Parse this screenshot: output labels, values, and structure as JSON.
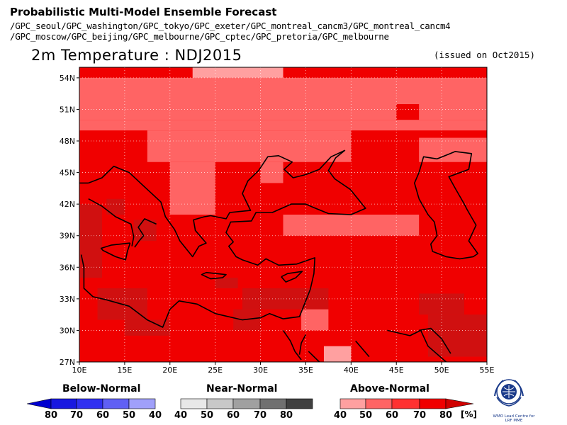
{
  "header": {
    "title": "Probabilistic Multi-Model Ensemble Forecast",
    "models_line1": "/GPC_seoul/GPC_washington/GPC_tokyo/GPC_exeter/GPC_montreal_cancm3/GPC_montreal_cancm4",
    "models_line2": "/GPC_moscow/GPC_beijing/GPC_melbourne/GPC_cptec/GPC_pretoria/GPC_melbourne"
  },
  "map": {
    "title": "2m Temperature : NDJ2015",
    "issued": "(issued on Oct2015)",
    "lon_range": [
      10,
      55
    ],
    "lat_range": [
      27,
      55
    ],
    "grid_step_deg": 2.5,
    "lat_ticks": [
      "54N",
      "51N",
      "48N",
      "45N",
      "42N",
      "39N",
      "36N",
      "33N",
      "30N",
      "27N"
    ],
    "lon_ticks": [
      "10E",
      "15E",
      "20E",
      "25E",
      "30E",
      "35E",
      "40E",
      "45E",
      "50E",
      "55E"
    ],
    "base_class": "above_60",
    "regions": [
      {
        "cls": "above_40",
        "lon": [
          22.5,
          32.5
        ],
        "lat": [
          54.0,
          55.0
        ]
      },
      {
        "cls": "above_50",
        "lon": [
          10,
          55
        ],
        "lat": [
          50,
          54
        ]
      },
      {
        "cls": "above_60",
        "lon": [
          45,
          47.5
        ],
        "lat": [
          50,
          51.5
        ]
      },
      {
        "cls": "above_50",
        "lon": [
          10,
          55
        ],
        "lat": [
          49,
          50
        ]
      },
      {
        "cls": "above_50",
        "lon": [
          17.5,
          40
        ],
        "lat": [
          46,
          49
        ]
      },
      {
        "cls": "above_50",
        "lon": [
          47.5,
          55
        ],
        "lat": [
          46,
          48.3
        ]
      },
      {
        "cls": "above_50",
        "lon": [
          20,
          25
        ],
        "lat": [
          41,
          46
        ]
      },
      {
        "cls": "above_50",
        "lon": [
          30,
          32.5
        ],
        "lat": [
          44,
          46
        ]
      },
      {
        "cls": "above_50",
        "lon": [
          32.5,
          47.5
        ],
        "lat": [
          39,
          41
        ]
      },
      {
        "cls": "above_70",
        "lon": [
          10,
          12.5
        ],
        "lat": [
          35,
          42
        ]
      },
      {
        "cls": "above_70",
        "lon": [
          13,
          15
        ],
        "lat": [
          41,
          42.5
        ]
      },
      {
        "cls": "above_70",
        "lon": [
          16,
          18.5
        ],
        "lat": [
          38.5,
          40.5
        ]
      },
      {
        "cls": "above_70",
        "lon": [
          12,
          17.5
        ],
        "lat": [
          31,
          34
        ]
      },
      {
        "cls": "above_70",
        "lon": [
          25,
          27.5
        ],
        "lat": [
          34,
          35
        ]
      },
      {
        "cls": "above_70",
        "lon": [
          28,
          37.5
        ],
        "lat": [
          32,
          34
        ]
      },
      {
        "cls": "above_70",
        "lon": [
          15,
          20
        ],
        "lat": [
          29.5,
          31
        ]
      },
      {
        "cls": "above_70",
        "lon": [
          27,
          30
        ],
        "lat": [
          30,
          32
        ]
      },
      {
        "cls": "above_70",
        "lon": [
          47.5,
          52.5
        ],
        "lat": [
          31.5,
          33.5
        ]
      },
      {
        "cls": "above_70",
        "lon": [
          48.5,
          55
        ],
        "lat": [
          27.5,
          31.5
        ]
      },
      {
        "cls": "above_50",
        "lon": [
          34.5,
          37.5
        ],
        "lat": [
          30,
          32
        ]
      },
      {
        "cls": "above_40",
        "lon": [
          37,
          40
        ],
        "lat": [
          27,
          28.5
        ]
      }
    ],
    "coastlines": [
      [
        [
          11.0,
          44.0
        ],
        [
          12.5,
          44.5
        ],
        [
          13.8,
          45.6
        ],
        [
          15.5,
          45.0
        ],
        [
          17.0,
          43.8
        ],
        [
          19.0,
          42.2
        ],
        [
          19.5,
          40.8
        ],
        [
          20.5,
          39.6
        ],
        [
          21.1,
          38.5
        ],
        [
          22.5,
          37.0
        ],
        [
          23.2,
          38.0
        ],
        [
          24.0,
          38.3
        ],
        [
          22.8,
          39.5
        ],
        [
          22.6,
          40.5
        ],
        [
          23.8,
          40.8
        ],
        [
          24.5,
          40.9
        ],
        [
          26.2,
          40.6
        ],
        [
          26.6,
          41.2
        ],
        [
          28.9,
          41.4
        ],
        [
          28.0,
          43.0
        ],
        [
          28.6,
          44.2
        ],
        [
          29.8,
          45.2
        ],
        [
          30.8,
          46.5
        ],
        [
          32.0,
          46.6
        ],
        [
          33.5,
          46.0
        ],
        [
          32.6,
          45.3
        ],
        [
          33.6,
          44.5
        ],
        [
          35.0,
          44.8
        ],
        [
          36.5,
          45.3
        ],
        [
          37.8,
          46.5
        ],
        [
          39.3,
          47.1
        ],
        [
          38.3,
          46.4
        ],
        [
          37.5,
          45.2
        ],
        [
          38.2,
          44.4
        ],
        [
          39.9,
          43.4
        ],
        [
          41.6,
          41.6
        ],
        [
          40.0,
          41.0
        ],
        [
          37.5,
          41.1
        ],
        [
          35.8,
          41.7
        ],
        [
          35.0,
          42.0
        ],
        [
          33.4,
          42.0
        ],
        [
          31.3,
          41.2
        ],
        [
          29.5,
          41.2
        ],
        [
          29.0,
          40.4
        ],
        [
          26.7,
          40.3
        ],
        [
          26.2,
          39.3
        ],
        [
          27.0,
          38.4
        ],
        [
          26.5,
          38.0
        ],
        [
          27.3,
          37.0
        ],
        [
          28.0,
          36.7
        ],
        [
          29.7,
          36.2
        ],
        [
          30.6,
          36.8
        ],
        [
          32.0,
          36.2
        ],
        [
          34.0,
          36.3
        ],
        [
          36.0,
          36.9
        ],
        [
          35.9,
          35.4
        ],
        [
          35.5,
          33.9
        ],
        [
          35.0,
          32.8
        ],
        [
          34.3,
          31.3
        ],
        [
          32.5,
          31.1
        ],
        [
          31.0,
          31.6
        ],
        [
          30.0,
          31.2
        ],
        [
          28.0,
          31.0
        ],
        [
          25.0,
          31.6
        ],
        [
          23.0,
          32.5
        ],
        [
          21.0,
          32.8
        ],
        [
          20.0,
          32.0
        ],
        [
          19.2,
          30.3
        ],
        [
          17.5,
          31.0
        ],
        [
          15.5,
          32.3
        ],
        [
          13.0,
          32.9
        ],
        [
          11.5,
          33.2
        ],
        [
          10.5,
          34.0
        ],
        [
          10.5,
          36.0
        ],
        [
          10.2,
          37.2
        ]
      ],
      [
        [
          10.0,
          44.0
        ],
        [
          11.0,
          44.0
        ]
      ],
      [
        [
          15.8,
          38.0
        ],
        [
          16.0,
          38.9
        ],
        [
          15.7,
          40.1
        ],
        [
          14.0,
          40.8
        ],
        [
          12.5,
          41.8
        ],
        [
          11.0,
          42.5
        ]
      ],
      [
        [
          18.5,
          40.1
        ],
        [
          17.2,
          40.6
        ],
        [
          16.5,
          39.8
        ],
        [
          17.1,
          39.0
        ],
        [
          16.6,
          38.5
        ],
        [
          16.1,
          37.9
        ]
      ],
      [
        [
          15.6,
          38.3
        ],
        [
          13.5,
          38.1
        ],
        [
          12.4,
          37.8
        ],
        [
          12.6,
          37.6
        ],
        [
          14.0,
          37.0
        ],
        [
          15.1,
          36.7
        ],
        [
          15.3,
          37.5
        ],
        [
          15.6,
          38.3
        ]
      ],
      [
        [
          24.0,
          35.5
        ],
        [
          26.2,
          35.3
        ],
        [
          25.8,
          35.0
        ],
        [
          24.5,
          34.9
        ],
        [
          23.5,
          35.3
        ],
        [
          24.0,
          35.5
        ]
      ],
      [
        [
          32.3,
          35.1
        ],
        [
          33.0,
          35.4
        ],
        [
          34.6,
          35.6
        ],
        [
          33.9,
          35.0
        ],
        [
          32.8,
          34.6
        ],
        [
          32.3,
          35.1
        ]
      ],
      [
        [
          32.5,
          30.0
        ],
        [
          33.3,
          29.0
        ],
        [
          33.8,
          28.0
        ],
        [
          34.5,
          27.2
        ]
      ],
      [
        [
          34.3,
          27.7
        ],
        [
          34.5,
          28.8
        ],
        [
          35.0,
          29.6
        ]
      ],
      [
        [
          35.3,
          28.0
        ],
        [
          36.5,
          27.0
        ]
      ],
      [
        [
          47.5,
          42.5
        ],
        [
          48.5,
          41.0
        ],
        [
          49.2,
          40.3
        ],
        [
          49.5,
          39.0
        ],
        [
          48.8,
          38.2
        ],
        [
          49.0,
          37.5
        ],
        [
          50.5,
          37.0
        ],
        [
          52.0,
          36.8
        ],
        [
          53.5,
          37.0
        ],
        [
          54.0,
          37.3
        ],
        [
          53.0,
          38.5
        ],
        [
          53.8,
          40.0
        ],
        [
          52.8,
          41.5
        ],
        [
          52.5,
          42.0
        ],
        [
          51.5,
          43.5
        ],
        [
          50.8,
          44.6
        ],
        [
          53.0,
          45.3
        ],
        [
          53.3,
          46.8
        ],
        [
          51.5,
          47.0
        ],
        [
          49.5,
          46.3
        ],
        [
          48.0,
          46.5
        ],
        [
          47.5,
          45.0
        ],
        [
          47.0,
          44.0
        ],
        [
          47.5,
          42.5
        ]
      ],
      [
        [
          40.5,
          29.0
        ],
        [
          42.0,
          27.5
        ]
      ],
      [
        [
          44.0,
          30.0
        ],
        [
          46.5,
          29.5
        ],
        [
          47.7,
          30.0
        ],
        [
          48.5,
          28.5
        ],
        [
          50.5,
          27.0
        ]
      ],
      [
        [
          47.5,
          30.0
        ],
        [
          48.8,
          30.2
        ],
        [
          50.0,
          29.2
        ],
        [
          51.0,
          27.8
        ]
      ]
    ]
  },
  "legend": {
    "below_title": "Below-Normal",
    "near_title": "Near-Normal",
    "above_title": "Above-Normal",
    "below_ticks": [
      "80",
      "70",
      "60",
      "50",
      "40"
    ],
    "near_ticks": [
      "40",
      "50",
      "60",
      "70",
      "80"
    ],
    "above_ticks": [
      "40",
      "50",
      "60",
      "70",
      "80"
    ],
    "unit": "[%]",
    "colors": {
      "below": [
        "#0000d0",
        "#1818e0",
        "#3030f0",
        "#6060f4",
        "#a0a0fa"
      ],
      "near": [
        "#e8e8e8",
        "#c8c8c8",
        "#a0a0a0",
        "#707070",
        "#404040"
      ],
      "above": [
        "#ffa0a0",
        "#ff6464",
        "#ff3030",
        "#f00000",
        "#d00000"
      ]
    }
  },
  "palette": {
    "above_40": "#ffa0a0",
    "above_50": "#ff6464",
    "above_60": "#f00000",
    "above_70": "#d01010",
    "coast": "#000000"
  },
  "logo": {
    "caption": "WMO Lead Centre for LRF MME"
  }
}
